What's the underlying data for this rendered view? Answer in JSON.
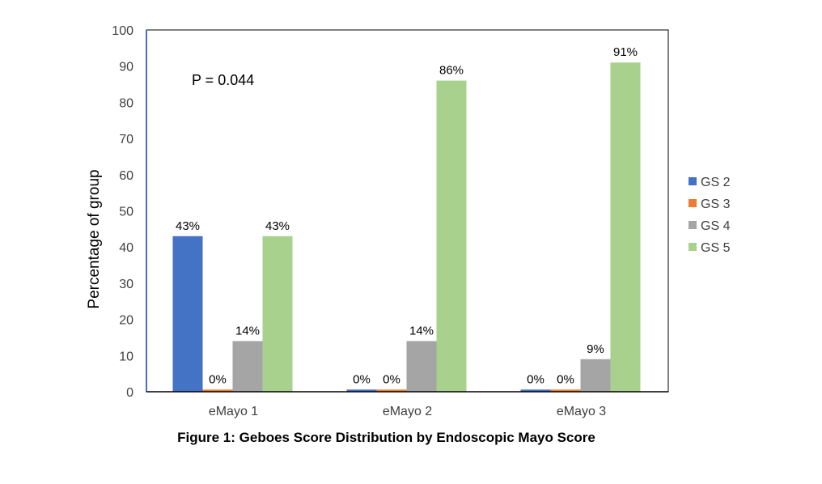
{
  "caption": "Figure 1: Geboes Score Distribution by Endoscopic Mayo Score",
  "chart_data": {
    "type": "bar",
    "title": "",
    "xlabel": "",
    "ylabel": "Percentage of group",
    "ylim": [
      0,
      100
    ],
    "yticks": [
      0,
      10,
      20,
      30,
      40,
      50,
      60,
      70,
      80,
      90,
      100
    ],
    "categories": [
      "eMayo 1",
      "eMayo 2",
      "eMayo 3"
    ],
    "series": [
      {
        "name": "GS 2",
        "color": "#4472C4",
        "values": [
          43,
          0,
          0
        ],
        "labels": [
          "43%",
          "0%",
          "0%"
        ]
      },
      {
        "name": "GS 3",
        "color": "#ED7D31",
        "values": [
          0,
          0,
          0
        ],
        "labels": [
          "0%",
          "0%",
          "0%"
        ]
      },
      {
        "name": "GS 4",
        "color": "#A5A5A5",
        "values": [
          14,
          14,
          9
        ],
        "labels": [
          "14%",
          "14%",
          "9%"
        ]
      },
      {
        "name": "GS 5",
        "color": "#A9D18E",
        "values": [
          43,
          86,
          91
        ],
        "labels": [
          "43%",
          "86%",
          "91%"
        ]
      }
    ],
    "annotation": "P = 0.044",
    "legend_position": "right",
    "grid": false
  }
}
